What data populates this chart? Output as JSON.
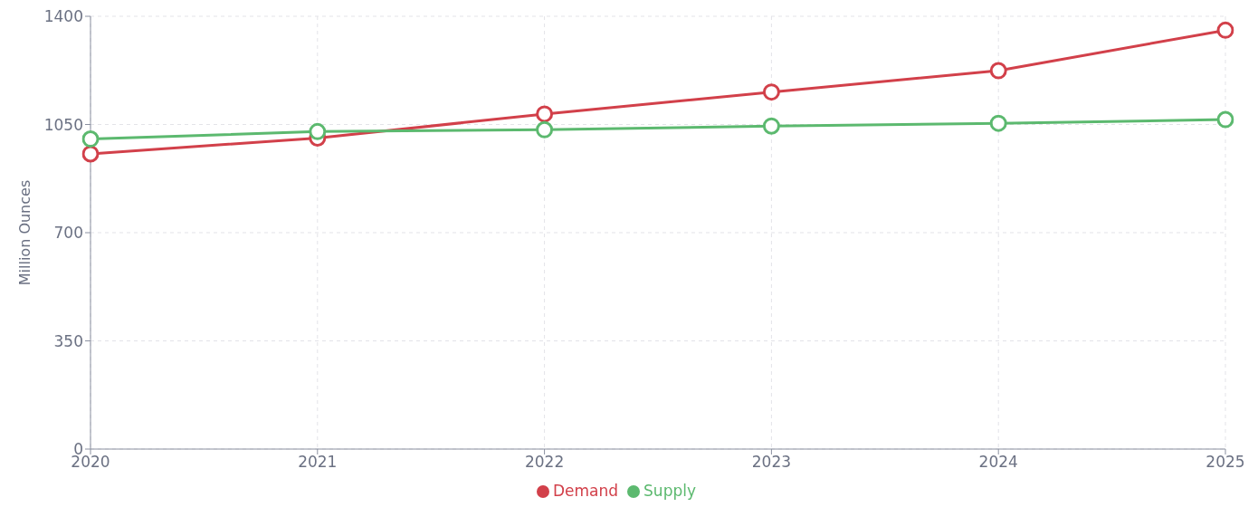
{
  "chart_data": {
    "type": "line",
    "ylabel": "Million Ounces",
    "x": [
      2020,
      2021,
      2022,
      2023,
      2024,
      2025
    ],
    "xlim": [
      2020,
      2025
    ],
    "xticks": [
      2020,
      2021,
      2022,
      2023,
      2024,
      2025
    ],
    "ylim": [
      0,
      1400
    ],
    "yticks": [
      0,
      350,
      700,
      1050,
      1400
    ],
    "grid": true,
    "legend": "bottom",
    "marker": "circle",
    "line_style": "solid",
    "series": [
      {
        "name": "Supply",
        "color": "#5cb96f",
        "values": [
          1003,
          1027,
          1033,
          1045,
          1054,
          1066
        ]
      },
      {
        "name": "Demand",
        "color": "#d2404a",
        "values": [
          955,
          1006,
          1084,
          1155,
          1224,
          1355
        ]
      }
    ]
  }
}
